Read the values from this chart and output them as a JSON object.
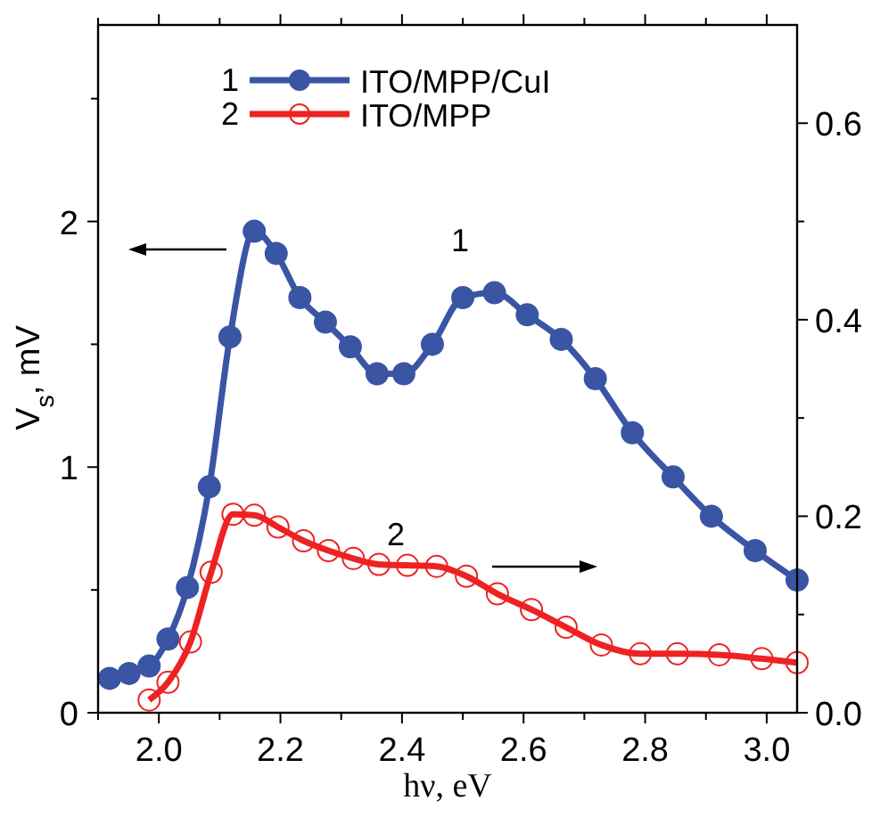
{
  "chart_data": {
    "type": "line",
    "xlabel": "hν, eV",
    "ylabel": "V$_{s}$, mV",
    "xlim": [
      1.9,
      3.05
    ],
    "xticks": [
      {
        "value": 1.9,
        "label": null
      },
      {
        "value": 2,
        "label": "2.0"
      },
      {
        "value": 2.1,
        "label": null
      },
      2.2,
      {
        "value": 2.3,
        "label": null
      },
      2.4,
      {
        "value": 2.5,
        "label": null
      },
      2.6,
      {
        "value": 2.7,
        "label": null
      },
      2.8,
      {
        "value": 2.9,
        "label": null
      },
      {
        "value": 3,
        "label": "3.0"
      }
    ],
    "ylim": [
      0,
      2.8
    ],
    "yticks": [
      0,
      {
        "value": 0.5,
        "label": null
      },
      1,
      {
        "value": 1.5,
        "label": null
      },
      2,
      {
        "value": 2.5,
        "label": null
      }
    ],
    "y2lim": [
      0,
      0.7
    ],
    "y2ticks": [
      {
        "value": 0,
        "label": "0.0"
      },
      {
        "value": 0.1,
        "label": null
      },
      0.2,
      {
        "value": 0.3,
        "label": null
      },
      0.4,
      {
        "value": 0.5,
        "label": null
      },
      0.6
    ],
    "grid": false,
    "legend": "top left",
    "marker": "circle",
    "line_style": "solid",
    "annotations": [
      "1",
      "2"
    ],
    "series": [
      {
        "name": "ITO/MPP/CuI",
        "color": "#3a55a4",
        "x": [
          1.919,
          1.951,
          1.984,
          2.015,
          2.047,
          2.083,
          2.117,
          2.157,
          2.193,
          2.232,
          2.274,
          2.315,
          2.359,
          2.403,
          2.45,
          2.5,
          2.552,
          2.606,
          2.662,
          2.718,
          2.779,
          2.846,
          2.909,
          2.981,
          3.05
        ],
        "values": [
          0.14,
          0.16,
          0.19,
          0.3,
          0.51,
          0.92,
          1.53,
          1.96,
          1.87,
          1.69,
          1.59,
          1.49,
          1.38,
          1.38,
          1.5,
          1.69,
          1.71,
          1.62,
          1.52,
          1.36,
          1.14,
          0.96,
          0.8,
          0.66,
          0.54
        ]
      },
      {
        "name": "ITO/MPP",
        "color": "#ee2222",
        "axis": "y2",
        "x": [
          1.984,
          2.015,
          2.052,
          2.086,
          2.122,
          2.157,
          2.196,
          2.238,
          2.279,
          2.32,
          2.362,
          2.409,
          2.457,
          2.506,
          2.557,
          2.613,
          2.67,
          2.728,
          2.792,
          2.853,
          2.922,
          2.992,
          3.05
        ],
        "values": [
          0.013,
          0.031,
          0.072,
          0.143,
          0.202,
          0.201,
          0.189,
          0.175,
          0.165,
          0.157,
          0.151,
          0.15,
          0.149,
          0.139,
          0.121,
          0.105,
          0.087,
          0.069,
          0.06,
          0.06,
          0.059,
          0.055,
          0.051
        ]
      }
    ]
  }
}
